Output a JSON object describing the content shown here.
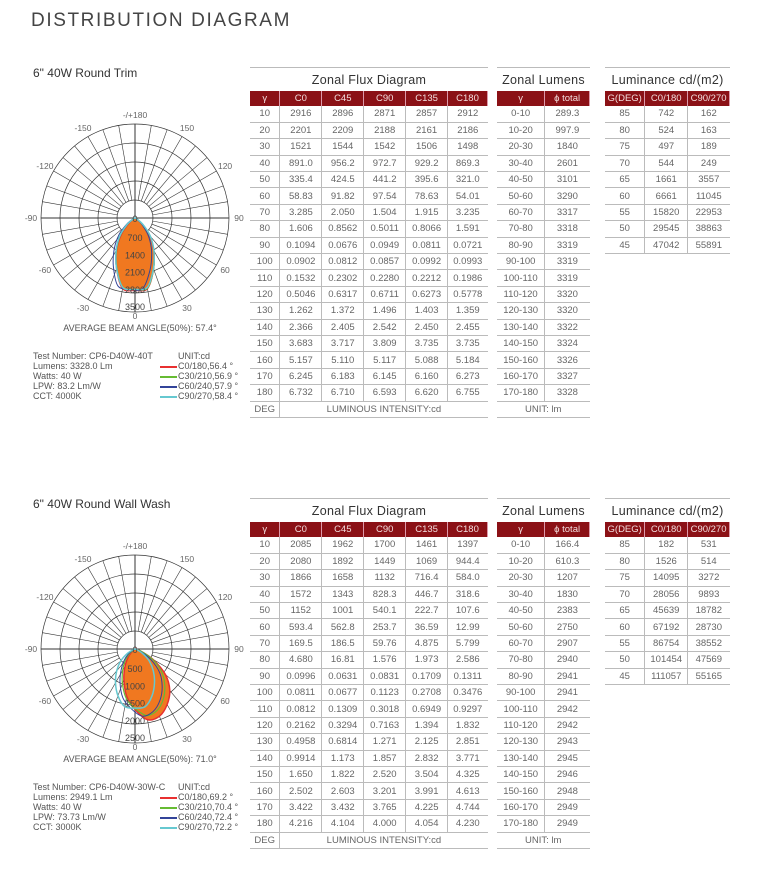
{
  "page_title": "DISTRIBUTION DIAGRAM",
  "colors": {
    "header": "#8b1116",
    "fill": "#f07820",
    "c0": "#e83030",
    "c30": "#66bb33",
    "c60": "#334499",
    "c90": "#66c8d0"
  },
  "sections": [
    {
      "subtitle": "6\" 40W Round Trim",
      "polar": {
        "angle_labels": [
          "-/+180",
          "-150",
          "150",
          "-120",
          "120",
          "-90",
          "90",
          "-60",
          "60",
          "-30",
          "30",
          "0"
        ],
        "radial_labels": [
          "0",
          "700",
          "1400",
          "2100",
          "2800",
          "3500"
        ],
        "max": 3500
      },
      "beam_angle": "AVERAGE BEAM ANGLE(50%): 57.4°",
      "info": [
        "Test Number: CP6-D40W-40T",
        "Lumens: 3328.0 Lm",
        "Watts: 40 W",
        "LPW: 83.2 Lm/W",
        "CCT: 4000K"
      ],
      "unit": "UNIT:cd",
      "legend": [
        "C0/180,56.4 °",
        "C30/210,56.9 °",
        "C60/240,57.9 °",
        "C90/270,58.4 °"
      ],
      "flux": {
        "title": "Zonal Flux Diagram",
        "headers": [
          "γ",
          "C0",
          "C45",
          "C90",
          "C135",
          "C180"
        ],
        "rows": [
          [
            "10",
            "2916",
            "2896",
            "2871",
            "2857",
            "2912"
          ],
          [
            "20",
            "2201",
            "2209",
            "2188",
            "2161",
            "2186"
          ],
          [
            "30",
            "1521",
            "1544",
            "1542",
            "1506",
            "1498"
          ],
          [
            "40",
            "891.0",
            "956.2",
            "972.7",
            "929.2",
            "869.3"
          ],
          [
            "50",
            "335.4",
            "424.5",
            "441.2",
            "395.6",
            "321.0"
          ],
          [
            "60",
            "58.83",
            "91.82",
            "97.54",
            "78.63",
            "54.01"
          ],
          [
            "70",
            "3.285",
            "2.050",
            "1.504",
            "1.915",
            "3.235"
          ],
          [
            "80",
            "1.606",
            "0.8562",
            "0.5011",
            "0.8066",
            "1.591"
          ],
          [
            "90",
            "0.1094",
            "0.0676",
            "0.0949",
            "0.0811",
            "0.0721"
          ],
          [
            "100",
            "0.0902",
            "0.0812",
            "0.0857",
            "0.0992",
            "0.0993"
          ],
          [
            "110",
            "0.1532",
            "0.2302",
            "0.2280",
            "0.2212",
            "0.1986"
          ],
          [
            "120",
            "0.5046",
            "0.6317",
            "0.6711",
            "0.6273",
            "0.5778"
          ],
          [
            "130",
            "1.262",
            "1.372",
            "1.496",
            "1.403",
            "1.359"
          ],
          [
            "140",
            "2.366",
            "2.405",
            "2.542",
            "2.450",
            "2.455"
          ],
          [
            "150",
            "3.683",
            "3.717",
            "3.809",
            "3.735",
            "3.735"
          ],
          [
            "160",
            "5.157",
            "5.110",
            "5.117",
            "5.088",
            "5.184"
          ],
          [
            "170",
            "6.245",
            "6.183",
            "6.145",
            "6.160",
            "6.273"
          ],
          [
            "180",
            "6.732",
            "6.710",
            "6.593",
            "6.620",
            "6.755"
          ]
        ],
        "footer": [
          "DEG",
          "LUMINOUS INTENSITY:cd"
        ]
      },
      "lumens": {
        "title": "Zonal Lumens",
        "headers": [
          "γ",
          "ϕ total"
        ],
        "rows": [
          [
            "0-10",
            "289.3"
          ],
          [
            "10-20",
            "997.9"
          ],
          [
            "20-30",
            "1840"
          ],
          [
            "30-40",
            "2601"
          ],
          [
            "40-50",
            "3101"
          ],
          [
            "50-60",
            "3290"
          ],
          [
            "60-70",
            "3317"
          ],
          [
            "70-80",
            "3318"
          ],
          [
            "80-90",
            "3319"
          ],
          [
            "90-100",
            "3319"
          ],
          [
            "100-110",
            "3319"
          ],
          [
            "110-120",
            "3320"
          ],
          [
            "120-130",
            "3320"
          ],
          [
            "130-140",
            "3322"
          ],
          [
            "140-150",
            "3324"
          ],
          [
            "150-160",
            "3326"
          ],
          [
            "160-170",
            "3327"
          ],
          [
            "170-180",
            "3328"
          ]
        ],
        "footer": "UNIT: lm"
      },
      "luminance": {
        "title": "Luminance cd/(m2)",
        "headers": [
          "G(DEG)",
          "C0/180",
          "C90/270"
        ],
        "rows": [
          [
            "85",
            "742",
            "162"
          ],
          [
            "80",
            "524",
            "163"
          ],
          [
            "75",
            "497",
            "189"
          ],
          [
            "70",
            "544",
            "249"
          ],
          [
            "65",
            "1661",
            "3557"
          ],
          [
            "60",
            "6661",
            "11045"
          ],
          [
            "55",
            "15820",
            "22953"
          ],
          [
            "50",
            "29545",
            "38863"
          ],
          [
            "45",
            "47042",
            "55891"
          ]
        ]
      }
    },
    {
      "subtitle": "6\" 40W Round Wall Wash",
      "polar": {
        "angle_labels": [
          "-/+180",
          "-150",
          "150",
          "-120",
          "120",
          "-90",
          "90",
          "-60",
          "60",
          "-30",
          "30",
          "0"
        ],
        "radial_labels": [
          "0",
          "500",
          "1000",
          "1500",
          "2000",
          "2500"
        ],
        "max": 2500
      },
      "beam_angle": "AVERAGE BEAM ANGLE(50%): 71.0°",
      "info": [
        "Test Number: CP6-D40W-30W-C",
        "Lumens: 2949.1 Lm",
        "Watts: 40 W",
        "LPW: 73.73 Lm/W",
        "CCT: 3000K"
      ],
      "unit": "UNIT:cd",
      "legend": [
        "C0/180,69.2 °",
        "C30/210,70.4 °",
        "C60/240,72.4 °",
        "C90/270,72.2 °"
      ],
      "flux": {
        "title": "Zonal Flux Diagram",
        "headers": [
          "γ",
          "C0",
          "C45",
          "C90",
          "C135",
          "C180"
        ],
        "rows": [
          [
            "10",
            "2085",
            "1962",
            "1700",
            "1461",
            "1397"
          ],
          [
            "20",
            "2080",
            "1892",
            "1449",
            "1069",
            "944.4"
          ],
          [
            "30",
            "1866",
            "1658",
            "1132",
            "716.4",
            "584.0"
          ],
          [
            "40",
            "1572",
            "1343",
            "828.3",
            "446.7",
            "318.6"
          ],
          [
            "50",
            "1152",
            "1001",
            "540.1",
            "222.7",
            "107.6"
          ],
          [
            "60",
            "593.4",
            "562.8",
            "253.7",
            "36.59",
            "12.99"
          ],
          [
            "70",
            "169.5",
            "186.5",
            "59.76",
            "4.875",
            "5.799"
          ],
          [
            "80",
            "4.680",
            "16.81",
            "1.576",
            "1.973",
            "2.586"
          ],
          [
            "90",
            "0.0996",
            "0.0631",
            "0.0831",
            "0.1709",
            "0.1311"
          ],
          [
            "100",
            "0.0811",
            "0.0677",
            "0.1123",
            "0.2708",
            "0.3476"
          ],
          [
            "110",
            "0.0812",
            "0.1309",
            "0.3018",
            "0.6949",
            "0.9297"
          ],
          [
            "120",
            "0.2162",
            "0.3294",
            "0.7163",
            "1.394",
            "1.832"
          ],
          [
            "130",
            "0.4958",
            "0.6814",
            "1.271",
            "2.125",
            "2.851"
          ],
          [
            "140",
            "0.9914",
            "1.173",
            "1.857",
            "2.832",
            "3.771"
          ],
          [
            "150",
            "1.650",
            "1.822",
            "2.520",
            "3.504",
            "4.325"
          ],
          [
            "160",
            "2.502",
            "2.603",
            "3.201",
            "3.991",
            "4.613"
          ],
          [
            "170",
            "3.422",
            "3.432",
            "3.765",
            "4.225",
            "4.744"
          ],
          [
            "180",
            "4.216",
            "4.104",
            "4.000",
            "4.054",
            "4.230"
          ]
        ],
        "footer": [
          "DEG",
          "LUMINOUS INTENSITY:cd"
        ]
      },
      "lumens": {
        "title": "Zonal Lumens",
        "headers": [
          "γ",
          "ϕ total"
        ],
        "rows": [
          [
            "0-10",
            "166.4"
          ],
          [
            "10-20",
            "610.3"
          ],
          [
            "20-30",
            "1207"
          ],
          [
            "30-40",
            "1830"
          ],
          [
            "40-50",
            "2383"
          ],
          [
            "50-60",
            "2750"
          ],
          [
            "60-70",
            "2907"
          ],
          [
            "70-80",
            "2940"
          ],
          [
            "80-90",
            "2941"
          ],
          [
            "90-100",
            "2941"
          ],
          [
            "100-110",
            "2942"
          ],
          [
            "110-120",
            "2942"
          ],
          [
            "120-130",
            "2943"
          ],
          [
            "130-140",
            "2945"
          ],
          [
            "140-150",
            "2946"
          ],
          [
            "150-160",
            "2948"
          ],
          [
            "160-170",
            "2949"
          ],
          [
            "170-180",
            "2949"
          ]
        ],
        "footer": "UNIT: lm"
      },
      "luminance": {
        "title": "Luminance cd/(m2)",
        "headers": [
          "G(DEG)",
          "C0/180",
          "C90/270"
        ],
        "rows": [
          [
            "85",
            "182",
            "531"
          ],
          [
            "80",
            "1526",
            "514"
          ],
          [
            "75",
            "14095",
            "3272"
          ],
          [
            "70",
            "28056",
            "9893"
          ],
          [
            "65",
            "45639",
            "18782"
          ],
          [
            "60",
            "67192",
            "28730"
          ],
          [
            "55",
            "86754",
            "38552"
          ],
          [
            "50",
            "101454",
            "47569"
          ],
          [
            "45",
            "111057",
            "55165"
          ]
        ]
      }
    }
  ]
}
